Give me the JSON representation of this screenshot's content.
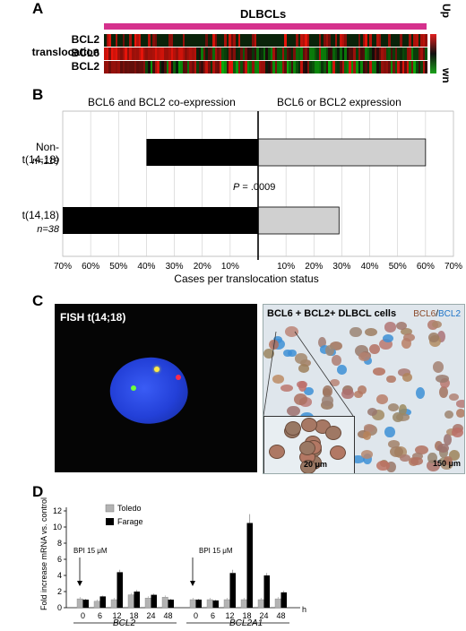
{
  "panelA": {
    "letter": "A",
    "group_label": "DLBCLs",
    "rows": [
      "BCL2 translocation",
      "BCL6",
      "BCL2"
    ],
    "legend_up": "Up",
    "legend_down": "Down",
    "colors": {
      "bar": "#d5318d",
      "up": "#e01f1f",
      "down": "#1aa11a"
    }
  },
  "panelB": {
    "letter": "B",
    "left_header": "BCL6 and BCL2 co-expression",
    "right_header": "BCL6 or BCL2 expression",
    "p_label": "P",
    "p_value": " = .0009",
    "xlabel": "Cases per translocation status",
    "groups": [
      {
        "name": "Non-t(14,18)",
        "n": "n=119"
      },
      {
        "name": "t(14,18)",
        "n": "n=38"
      }
    ]
  },
  "panelC": {
    "letter": "C",
    "fish_label": "FISH t(14;18)",
    "ihc_label": "BCL6 + BCL2+ DLBCL cells",
    "stain_bcl6": "BCL6",
    "stain_sep": "/",
    "stain_bcl2": "BCL2",
    "scale_small": "20 μm",
    "scale_large": "150 μm"
  },
  "panelD": {
    "letter": "D",
    "ylabel": "Fold increase mRNA vs. control",
    "legend": [
      "Toledo",
      "Farage"
    ],
    "arrow_label": "BPI 15 μM",
    "unit": "h",
    "genes": [
      "BCL2",
      "BCL2A1"
    ]
  },
  "chart_data": [
    {
      "type": "bar",
      "title": "",
      "xlabel": "Cases per translocation status",
      "ylabel": "",
      "orientation": "horizontal-diverging",
      "categories": [
        "Non-t(14,18)",
        "t(14,18)"
      ],
      "series": [
        {
          "name": "BCL6 and BCL2 co-expression",
          "values": [
            40,
            70
          ]
        },
        {
          "name": "BCL6 or BCL2 expression",
          "values": [
            60,
            29
          ]
        }
      ],
      "xticks": [
        "70%",
        "60%",
        "50%",
        "40%",
        "30%",
        "20%",
        "10%",
        "10%",
        "20%",
        "30%",
        "40%",
        "50%",
        "60%",
        "70%"
      ],
      "xlim": [
        -70,
        70
      ],
      "grid": true,
      "annotations": [
        "P = .0009"
      ]
    },
    {
      "type": "bar",
      "title": "",
      "xlabel": "h",
      "ylabel": "Fold increase mRNA vs. control",
      "ylim": [
        0,
        12
      ],
      "yticks": [
        "0",
        "2",
        "4",
        "6",
        "8",
        "10",
        "12"
      ],
      "groups": [
        "BCL2",
        "BCL2A1"
      ],
      "categories": [
        "0",
        "6",
        "12",
        "18",
        "24",
        "48"
      ],
      "series": [
        {
          "name": "Toledo",
          "gene": "BCL2",
          "values": [
            1.1,
            0.8,
            1.0,
            1.6,
            1.2,
            1.3
          ]
        },
        {
          "name": "Farage",
          "gene": "BCL2",
          "values": [
            1.0,
            1.4,
            4.4,
            2.0,
            1.6,
            1.0
          ]
        },
        {
          "name": "Toledo",
          "gene": "BCL2A1",
          "values": [
            1.0,
            1.0,
            1.0,
            1.0,
            1.0,
            1.1
          ]
        },
        {
          "name": "Farage",
          "gene": "BCL2A1",
          "values": [
            1.0,
            0.9,
            4.3,
            10.5,
            4.0,
            1.9
          ]
        }
      ],
      "errors": {
        "BCL2_Farage": [
          0.1,
          0.1,
          0.3,
          0.2,
          0.15,
          0.1
        ],
        "BCL2A1_Farage": [
          0.1,
          0.1,
          0.4,
          1.1,
          0.3,
          0.2
        ]
      },
      "legend_position": "top-left",
      "annotations": [
        "BPI 15 μM"
      ]
    }
  ]
}
